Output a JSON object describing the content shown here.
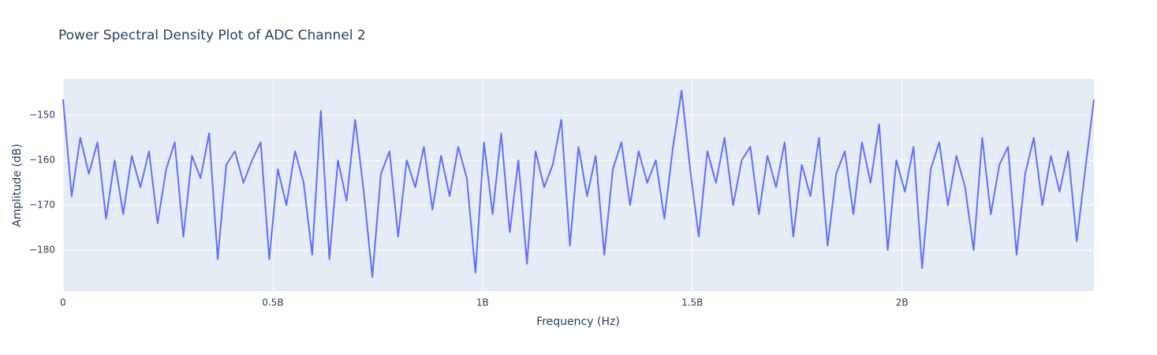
{
  "chart_data": {
    "type": "line",
    "title": "Power Spectral Density Plot of ADC Channel 2",
    "x_label": "Frequency (Hz)",
    "y_label": "Amplitude (dB)",
    "x": [
      0,
      20480000,
      40960000,
      61440000,
      81920000,
      102400000,
      122880000,
      143360000,
      163840000,
      184320000,
      204800000,
      225280000,
      245760000,
      266240000,
      286720000,
      307200000,
      327680000,
      348160000,
      368640000,
      389120000,
      409600000,
      430080000,
      450560000,
      471040000,
      491520000,
      512000000,
      532480000,
      552960000,
      573440000,
      593920000,
      614400000,
      634880000,
      655360000,
      675840000,
      696320000,
      716800000,
      737280000,
      757760000,
      778240000,
      798720000,
      819200000,
      839680000,
      860160000,
      880640000,
      901120000,
      921600000,
      942080000,
      962560000,
      983040000,
      1003520000,
      1024000000,
      1044480000,
      1064960000,
      1085440000,
      1105920000,
      1126400000,
      1146880000,
      1167360000,
      1187840000,
      1208320000,
      1228800000,
      1249280000,
      1269760000,
      1290240000,
      1310720000,
      1331200000,
      1351680000,
      1372160000,
      1392640000,
      1413120000,
      1433600000,
      1454080000,
      1474560000,
      1495040000,
      1515520000,
      1536000000,
      1556480000,
      1576960000,
      1597440000,
      1617920000,
      1638400000,
      1658880000,
      1679360000,
      1699840000,
      1720320000,
      1740800000,
      1761280000,
      1781760000,
      1802240000,
      1822720000,
      1843200000,
      1863680000,
      1884160000,
      1904640000,
      1925120000,
      1945600000,
      1966080000,
      1986560000,
      2007040000,
      2027520000,
      2048000000,
      2068480000,
      2088960000,
      2109440000,
      2129920000,
      2150400000,
      2170880000,
      2191360000,
      2211840000,
      2232320000,
      2252800000,
      2273280000,
      2293760000,
      2314240000,
      2334720000,
      2355200000,
      2375680000,
      2396160000,
      2416640000,
      2437120000,
      2457600000
    ],
    "series": [
      {
        "color": "#636efa",
        "values": [
          -146.5,
          -168,
          -155,
          -163,
          -156,
          -173,
          -160,
          -172,
          -159,
          -166,
          -158,
          -174,
          -162,
          -156,
          -177,
          -159,
          -164,
          -154,
          -182,
          -161,
          -158,
          -165,
          -160,
          -156,
          -182,
          -162,
          -170,
          -158,
          -165,
          -181,
          -149,
          -182,
          -160,
          -169,
          -151,
          -167,
          -186,
          -163,
          -158,
          -177,
          -160,
          -166,
          -157,
          -171,
          -159,
          -168,
          -157,
          -164,
          -185,
          -156,
          -172,
          -154,
          -176,
          -160,
          -183,
          -158,
          -166,
          -161,
          -151,
          -179,
          -157,
          -168,
          -159,
          -181,
          -162,
          -156,
          -170,
          -158,
          -165,
          -160,
          -173,
          -157,
          -144.5,
          -162,
          -177,
          -158,
          -165,
          -155,
          -170,
          -160,
          -157,
          -172,
          -159,
          -166,
          -156,
          -177,
          -161,
          -168,
          -155,
          -179,
          -163,
          -158,
          -172,
          -156,
          -165,
          -152,
          -180,
          -160,
          -167,
          -157,
          -184,
          -162,
          -156,
          -170,
          -159,
          -166,
          -180,
          -155,
          -172,
          -161,
          -157,
          -181,
          -163,
          -155,
          -170,
          -159,
          -167,
          -158,
          -178,
          -162,
          -146.5
        ]
      }
    ],
    "xlim": [
      0,
      2457600000
    ],
    "xticks": [
      0,
      {
        "value": 500000000,
        "label": "0.5B"
      },
      {
        "value": 1000000000,
        "label": "1B"
      },
      {
        "value": 1500000000,
        "label": "1.5B"
      },
      {
        "value": 2000000000,
        "label": "2B"
      }
    ],
    "ylim": [
      -189.1,
      -141.9
    ],
    "yticks": [
      {
        "value": -180,
        "label": "−180"
      },
      {
        "value": -170,
        "label": "−170"
      },
      {
        "value": -160,
        "label": "−160"
      },
      {
        "value": -150,
        "label": "−150"
      }
    ],
    "grid": true
  }
}
